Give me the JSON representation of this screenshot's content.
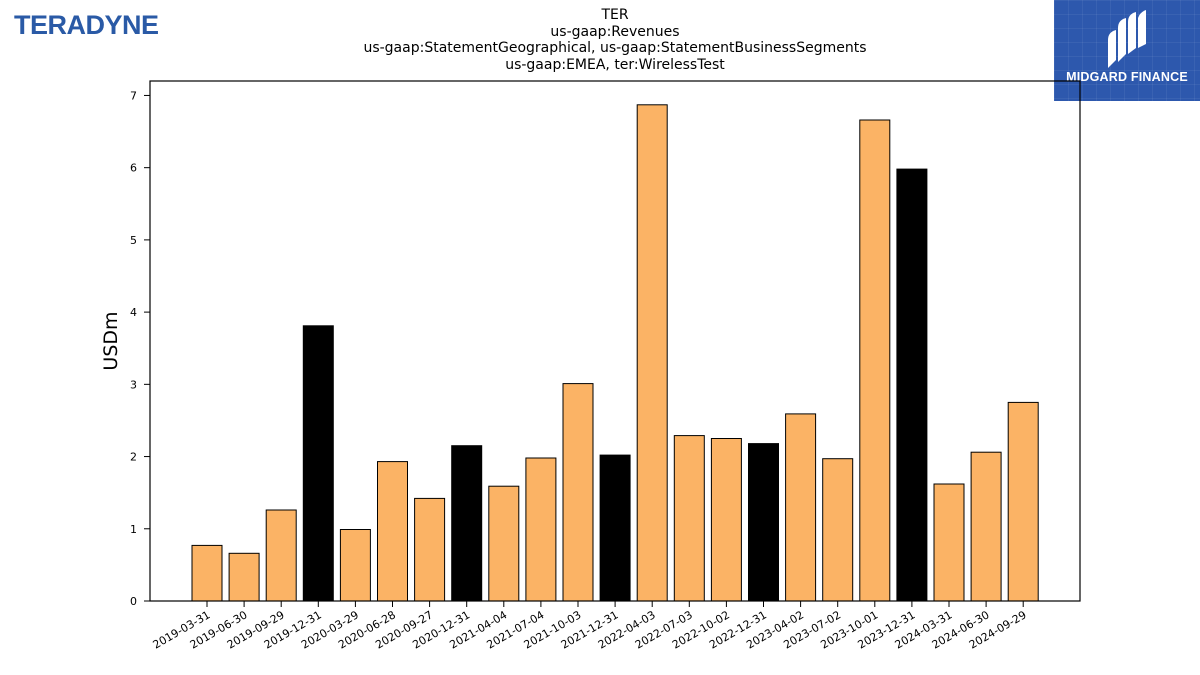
{
  "header": {
    "company_logo_text": "TERADYNE",
    "partner_logo_text": "MIDGARD FINANCE"
  },
  "colors": {
    "bar_default": "#fbb365",
    "bar_highlight": "#000000",
    "logo_blue": "#2a5aa6",
    "partner_bg": "#2d58ad"
  },
  "chart_data": {
    "type": "bar",
    "title_lines": [
      "TER",
      "us-gaap:Revenues",
      "us-gaap:StatementGeographical, us-gaap:StatementBusinessSegments",
      "us-gaap:EMEA, ter:WirelessTest"
    ],
    "xlabel": "",
    "ylabel": "USDm",
    "ylim": [
      0,
      7.2
    ],
    "yticks": [
      0,
      1,
      2,
      3,
      4,
      5,
      6,
      7
    ],
    "grid": false,
    "categories": [
      "2019-03-31",
      "2019-06-30",
      "2019-09-29",
      "2019-12-31",
      "2020-03-29",
      "2020-06-28",
      "2020-09-27",
      "2020-12-31",
      "2021-04-04",
      "2021-07-04",
      "2021-10-03",
      "2021-12-31",
      "2022-04-03",
      "2022-07-03",
      "2022-10-02",
      "2022-12-31",
      "2023-04-02",
      "2023-07-02",
      "2023-10-01",
      "2023-12-31",
      "2024-03-31",
      "2024-06-30",
      "2024-09-29"
    ],
    "values": [
      0.77,
      0.66,
      1.26,
      3.81,
      0.99,
      1.93,
      1.42,
      2.15,
      1.59,
      1.98,
      3.01,
      2.02,
      6.87,
      2.29,
      2.25,
      2.18,
      2.59,
      1.97,
      6.66,
      5.98,
      1.62,
      2.06,
      2.75
    ],
    "highlighted": [
      false,
      false,
      false,
      true,
      false,
      false,
      false,
      true,
      false,
      false,
      false,
      true,
      false,
      false,
      false,
      true,
      false,
      false,
      false,
      true,
      false,
      false,
      false
    ]
  }
}
